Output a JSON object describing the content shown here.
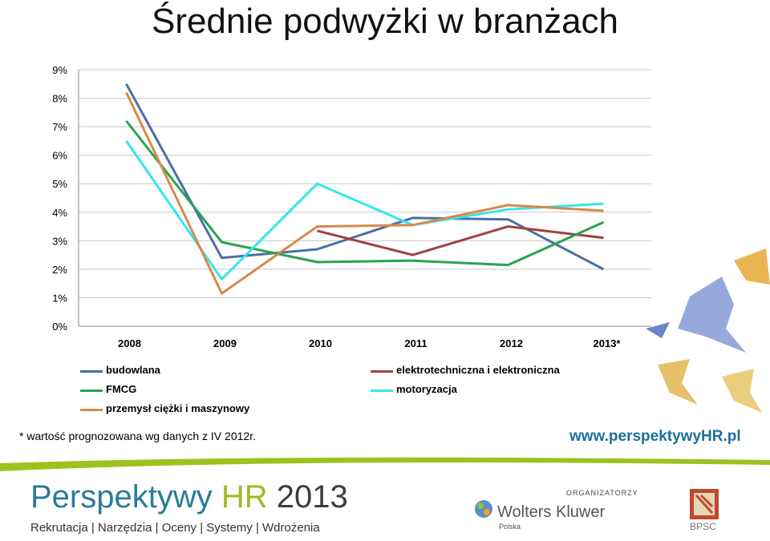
{
  "title": "Średnie podwyżki w branżach",
  "chart_data": {
    "type": "line",
    "categories": [
      "2008",
      "2009",
      "2010",
      "2011",
      "2012",
      "2013*"
    ],
    "yticks": [
      "0%",
      "1%",
      "2%",
      "3%",
      "4%",
      "5%",
      "6%",
      "7%",
      "8%",
      "9%"
    ],
    "ylim": [
      0,
      9
    ],
    "grid": true,
    "legend_position": "bottom",
    "series": [
      {
        "name": "budowlana",
        "color": "#4a6fa5",
        "values": [
          8.5,
          2.4,
          2.7,
          3.8,
          3.75,
          2.0
        ]
      },
      {
        "name": "elektrotechniczna i elektroniczna",
        "color": "#a0413f",
        "values": [
          null,
          null,
          3.35,
          2.5,
          3.5,
          3.1
        ]
      },
      {
        "name": "FMCG",
        "color": "#2aa350",
        "values": [
          7.2,
          2.95,
          2.25,
          2.3,
          2.15,
          3.65
        ]
      },
      {
        "name": "motoryzacja",
        "color": "#33e6ee",
        "values": [
          6.5,
          1.65,
          5.0,
          3.55,
          4.1,
          4.3
        ]
      },
      {
        "name": "przemysł ciężki i maszynowy",
        "color": "#d9884a",
        "values": [
          8.2,
          1.15,
          3.5,
          3.55,
          4.25,
          4.05
        ]
      }
    ]
  },
  "footnote": "* wartość prognozowana wg danych z IV 2012r.",
  "website": "www.perspektywyHR.pl",
  "brand": {
    "name": "Perspektywy",
    "hr": "HR",
    "year": "2013"
  },
  "tagline": "Rekrutacja | Narzędzia | Oceny | Systemy | Wdrożenia",
  "organizers_label": "ORGANIZATORZY",
  "organizer1": {
    "name": "Wolters Kluwer",
    "sub": "Polska"
  },
  "organizer2": {
    "name": "BPSC"
  },
  "colors": {
    "brand_blue": "#2a7c9a",
    "brand_green": "#9dbb25",
    "band_green": "#9dc21e"
  }
}
